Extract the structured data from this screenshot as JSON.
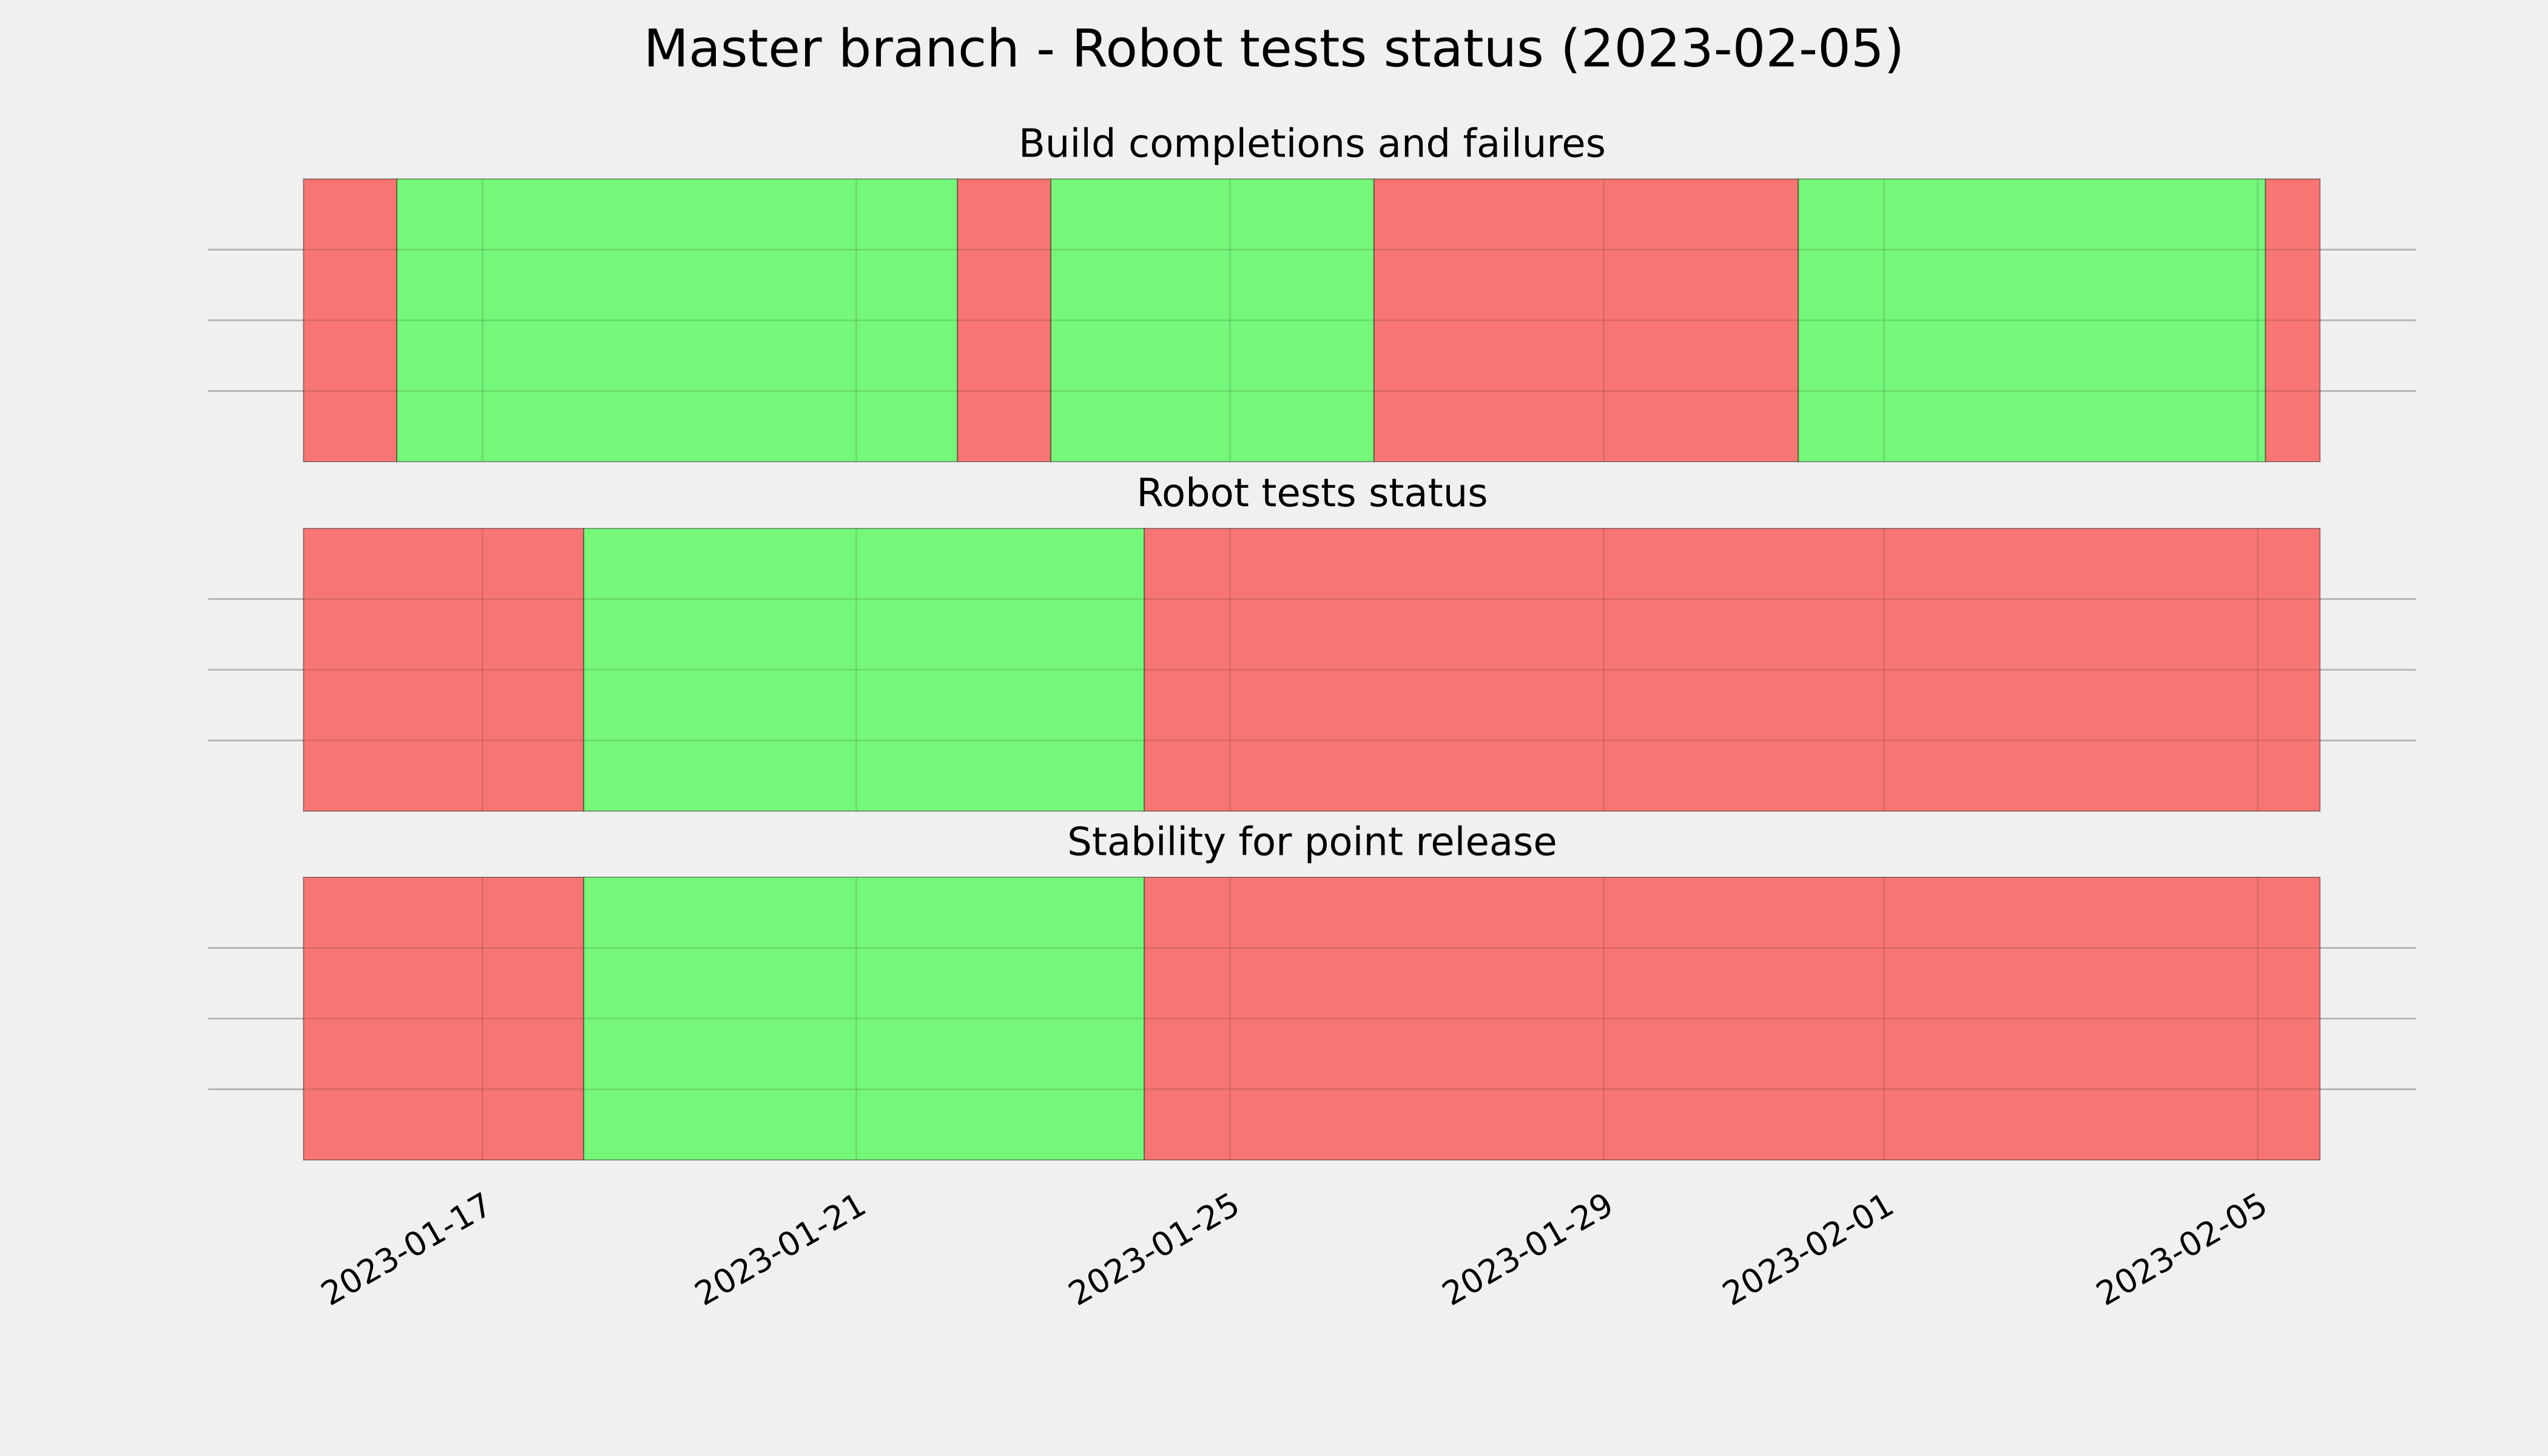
{
  "chart_data": {
    "type": "timeline",
    "title": "Master branch - Robot tests status (2023-02-05)",
    "xlim": [
      "2023-01-14T01:30",
      "2023-02-06T16:45"
    ],
    "xticks": [
      "2023-01-17",
      "2023-01-21",
      "2023-01-25",
      "2023-01-29",
      "2023-02-01",
      "2023-02-05"
    ],
    "ylim": [
      0,
      1
    ],
    "yticks": [
      0.25,
      0.5,
      0.75
    ],
    "grid": true,
    "panels": [
      {
        "title": "Build completions and failures",
        "spans": [
          {
            "start": "2023-01-15T02:00",
            "end": "2023-01-16T02:00",
            "color": "#f77673"
          },
          {
            "start": "2023-01-16T02:00",
            "end": "2023-01-22T02:00",
            "color": "#75f77a"
          },
          {
            "start": "2023-01-22T02:00",
            "end": "2023-01-23T02:00",
            "color": "#f77673"
          },
          {
            "start": "2023-01-23T02:00",
            "end": "2023-01-26T13:00",
            "color": "#75f77a"
          },
          {
            "start": "2023-01-26T13:00",
            "end": "2023-01-31T02:00",
            "color": "#f77673"
          },
          {
            "start": "2023-01-31T02:00",
            "end": "2023-02-05T02:00",
            "color": "#75f77a"
          },
          {
            "start": "2023-02-05T02:00",
            "end": "2023-02-05T16:00",
            "color": "#f77673"
          }
        ]
      },
      {
        "title": "Robot tests status",
        "spans": [
          {
            "start": "2023-01-15T02:00",
            "end": "2023-01-18T02:00",
            "color": "#f77673"
          },
          {
            "start": "2023-01-18T02:00",
            "end": "2023-01-24T02:00",
            "color": "#75f77a"
          },
          {
            "start": "2023-01-24T02:00",
            "end": "2023-02-05T16:00",
            "color": "#f77673"
          }
        ]
      },
      {
        "title": "Stability for point release",
        "spans": [
          {
            "start": "2023-01-15T02:00",
            "end": "2023-01-18T02:00",
            "color": "#f77673"
          },
          {
            "start": "2023-01-18T02:00",
            "end": "2023-01-24T02:00",
            "color": "#75f77a"
          },
          {
            "start": "2023-01-24T02:00",
            "end": "2023-02-05T16:00",
            "color": "#f77673"
          }
        ]
      }
    ]
  }
}
